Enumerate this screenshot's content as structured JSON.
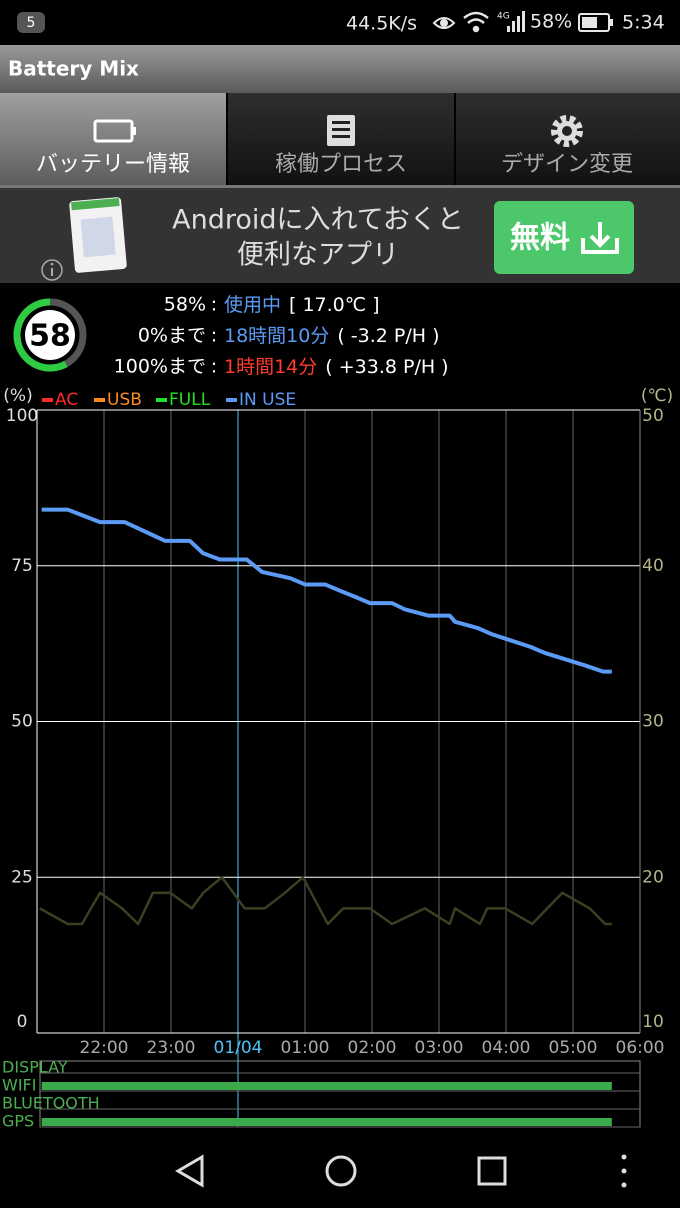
{
  "status_bar": {
    "notification_count": "5",
    "speed": "44.5K/s",
    "network": "4G",
    "battery": "58%",
    "time": "5:34"
  },
  "app_bar": {
    "title": "Battery Mix"
  },
  "tabs": [
    {
      "label": "バッテリー情報",
      "selected": true
    },
    {
      "label": "稼働プロセス",
      "selected": false
    },
    {
      "label": "デザイン変更",
      "selected": false
    }
  ],
  "ad": {
    "line1": "Androidに入れておくと",
    "line2": "便利なアプリ",
    "button": "無料"
  },
  "summary": {
    "level": 58,
    "separator": ":",
    "lines": [
      {
        "label": "58%",
        "value": "使用中",
        "value_color": "#5b9bf5",
        "detail": "[ 17.0℃ ]"
      },
      {
        "label": "0%まで",
        "value": "18時間10分",
        "value_color": "#5b9bf5",
        "detail": "( -3.2 P/H )"
      },
      {
        "label": "100%まで",
        "value": "1時間14分",
        "value_color": "#ff3b2f",
        "detail": "( +33.8 P/H )"
      }
    ]
  },
  "chart": {
    "type": "line",
    "y_label": "(%)",
    "y2_label": "(℃)",
    "legend": [
      {
        "name": "AC",
        "color": "#ff2a2a"
      },
      {
        "name": "USB",
        "color": "#ff8a1e"
      },
      {
        "name": "FULL",
        "color": "#22e022"
      },
      {
        "name": "IN USE",
        "color": "#5b9bf5"
      }
    ],
    "xlim": [
      21,
      30
    ],
    "xticks": [
      {
        "value": 22,
        "label": "22:00"
      },
      {
        "value": 23,
        "label": "23:00"
      },
      {
        "value": 25,
        "label": "01:00"
      },
      {
        "value": 26,
        "label": "02:00"
      },
      {
        "value": 27,
        "label": "03:00"
      },
      {
        "value": 28,
        "label": "04:00"
      },
      {
        "value": 29,
        "label": "05:00"
      },
      {
        "value": 30,
        "label": "06:00"
      }
    ],
    "date_ticks": [
      {
        "value": 24,
        "label": "01/04"
      }
    ],
    "date_tick_color": "#4fc3f7",
    "ylim": [
      0,
      100
    ],
    "yticks": [
      0,
      25,
      50,
      75,
      100
    ],
    "y2lim": [
      10,
      50
    ],
    "y2ticks": [
      10,
      20,
      30,
      40,
      50
    ],
    "grid": true,
    "series": [
      {
        "color": "#5b9bf5",
        "x": [
          21.07,
          21.46,
          21.94,
          22.31,
          22.91,
          23.28,
          23.48,
          23.73,
          24.13,
          24.36,
          24.78,
          25.0,
          25.3,
          25.52,
          25.75,
          25.97,
          26.3,
          26.49,
          26.84,
          27.16,
          27.24,
          27.58,
          27.79,
          28.36,
          28.58,
          28.88,
          29.18,
          29.45,
          29.58
        ],
        "values": [
          84,
          84,
          82,
          82,
          79,
          79,
          77,
          76,
          76,
          74,
          73,
          72,
          72,
          71,
          70,
          69,
          69,
          68,
          67,
          67,
          66,
          65,
          64,
          62,
          61,
          60,
          59,
          58,
          58
        ]
      },
      {
        "axis": "y2",
        "color": "#3e3e22",
        "x": [
          21.04,
          21.46,
          21.67,
          21.94,
          22.27,
          22.51,
          22.73,
          22.99,
          23.31,
          23.48,
          23.76,
          24.1,
          24.4,
          24.7,
          24.97,
          25.34,
          25.57,
          25.97,
          26.3,
          26.79,
          27.16,
          27.24,
          27.61,
          27.72,
          27.99,
          28.39,
          28.84,
          29.25,
          29.48,
          29.58
        ],
        "values": [
          18,
          17,
          17,
          19,
          18,
          17,
          19,
          19,
          18,
          19,
          20,
          18,
          18,
          19,
          20,
          17,
          18,
          18,
          17,
          18,
          17,
          18,
          17,
          18,
          18,
          17,
          19,
          18,
          17,
          17
        ]
      }
    ]
  },
  "activity": {
    "color": "#3aaa4a",
    "label_color": "#4caf50",
    "rows": [
      {
        "label": "DISPLAY",
        "spans": []
      },
      {
        "label": "WIFI",
        "spans": [
          [
            21.07,
            29.58
          ]
        ]
      },
      {
        "label": "BLUETOOTH",
        "spans": []
      },
      {
        "label": "GPS",
        "spans": [
          [
            21.07,
            29.58
          ]
        ]
      }
    ]
  }
}
